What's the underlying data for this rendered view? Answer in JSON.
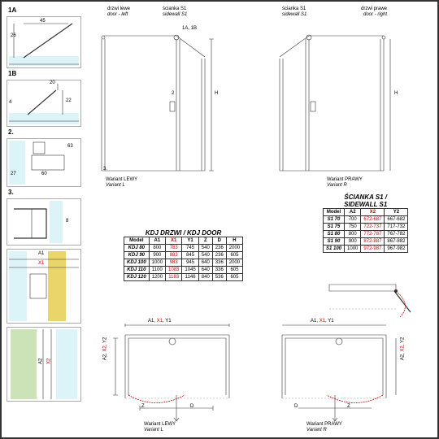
{
  "labels": {
    "d1a": "1A",
    "d1b": "1B",
    "d2": "2.",
    "d3": "3.",
    "drzwi_l": "drzwi lewe",
    "door_l": "door - left",
    "sc_s1": "ścianka S1",
    "sw_s1": "sidewall S1",
    "drzwi_r": "drzwi prawe",
    "door_r": "door - right",
    "var_l_pl": "Wariant LEWY",
    "var_l": "Variant L",
    "var_r_pl": "Wariant PRAWY",
    "var_r": "Variant R",
    "kdj_title": "KDJ DRZWI / KDJ DOOR",
    "s1_title": "ŚCIANKA S1 /\nSIDEWALL S1",
    "a1": "A1",
    "x1": "X1",
    "y1": "Y1",
    "a2": "A2",
    "x2": "X2",
    "y2": "Y2",
    "h": "H",
    "d": "D",
    "z": "Z",
    "dim1a": "1A, 1B",
    "n26": "26",
    "n45": "45",
    "n20": "20",
    "n4": "4",
    "n22": "22",
    "n60": "60",
    "n63": "63",
    "n27": "27",
    "n8": "8",
    "n2": "2",
    "n3": "3."
  },
  "kdj": {
    "cols": [
      "Model",
      "A1",
      "X1",
      "Y1",
      "Z",
      "D",
      "H"
    ],
    "rows": [
      [
        "KDJ 80",
        "800",
        "783",
        "745",
        "540",
        "236",
        "2000"
      ],
      [
        "KDJ 90",
        "900",
        "883",
        "845",
        "540",
        "236",
        "605"
      ],
      [
        "KDJ 100",
        "1000",
        "983",
        "945",
        "640",
        "336",
        "2000"
      ],
      [
        "KDJ 110",
        "1100",
        "1083",
        "1045",
        "640",
        "336",
        "605"
      ],
      [
        "KDJ 120",
        "1200",
        "1183",
        "1146",
        "840",
        "536",
        "605"
      ]
    ]
  },
  "s1": {
    "cols": [
      "Model",
      "A2",
      "X2",
      "Y2"
    ],
    "rows": [
      [
        "S1 70",
        "700",
        "672-687",
        "667-682"
      ],
      [
        "S1 75",
        "750",
        "722-737",
        "717-732"
      ],
      [
        "S1 80",
        "800",
        "772-787",
        "767-782"
      ],
      [
        "S1 90",
        "900",
        "872-887",
        "867-882"
      ],
      [
        "S1 100",
        "1000",
        "972-987",
        "967-982"
      ]
    ]
  },
  "colors": {
    "glass": "#cdeef5",
    "red": "#cc0000",
    "line": "#333333"
  }
}
